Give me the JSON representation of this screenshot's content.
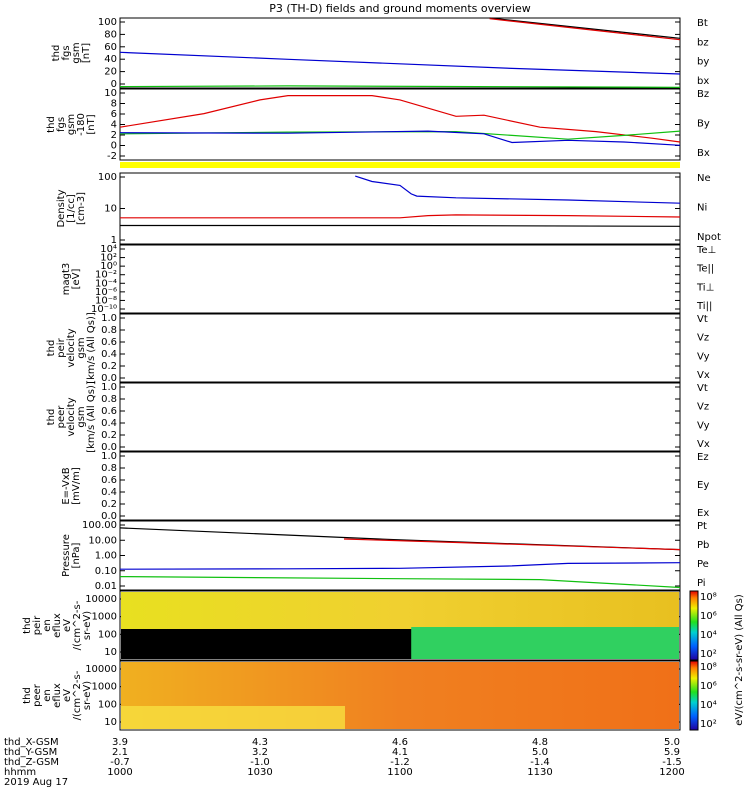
{
  "title": "P3 (TH-D) fields and ground moments overview",
  "colors": {
    "black": "#000000",
    "red": "#e00000",
    "green": "#10c010",
    "blue": "#0000d0",
    "yellow": "#ffff00"
  },
  "chart_data": [
    {
      "type": "line",
      "panel": "fgs-gsm",
      "ylabel": [
        "thd",
        "fgs",
        "gsm",
        "[nT]"
      ],
      "ylim": [
        0,
        100
      ],
      "yticks": [
        "100",
        "80",
        "60",
        "40",
        "20",
        "0"
      ],
      "legend": [
        {
          "name": "Bt",
          "color": "black"
        },
        {
          "name": "bz",
          "color": "red"
        },
        {
          "name": "by",
          "color": "green"
        },
        {
          "name": "bx",
          "color": "blue"
        }
      ],
      "series": [
        {
          "name": "Bt",
          "x": [
            0.66,
            1.0
          ],
          "y": [
            100,
            71
          ]
        },
        {
          "name": "bz",
          "x": [
            0.66,
            1.0
          ],
          "y": [
            99,
            69
          ]
        },
        {
          "name": "by",
          "x": [
            0,
            0.3,
            1.0
          ],
          "y": [
            2,
            3,
            1
          ]
        },
        {
          "name": "bx",
          "x": [
            0,
            0.3,
            0.7,
            1.0
          ],
          "y": [
            51,
            41,
            28,
            20
          ]
        }
      ]
    },
    {
      "type": "line",
      "panel": "fgs-gsm-180",
      "ylabel": [
        "thd",
        "fgs",
        "gsm",
        "-180",
        "[nT]"
      ],
      "ylim": [
        -3,
        10
      ],
      "yticks": [
        "10",
        "8",
        "6",
        "4",
        "2",
        "0",
        "-2"
      ],
      "legend": [
        {
          "name": "Bz",
          "color": "red"
        },
        {
          "name": "By",
          "color": "green"
        },
        {
          "name": "Bx",
          "color": "blue"
        }
      ],
      "series": [
        {
          "name": "Bz",
          "x": [
            0,
            0.15,
            0.25,
            0.3,
            0.45,
            0.5,
            0.6,
            0.65,
            0.75,
            0.85,
            0.95,
            1.0
          ],
          "y": [
            3,
            5.5,
            8,
            8.8,
            8.8,
            8,
            5,
            5.2,
            3,
            2.2,
            1,
            0.3
          ]
        },
        {
          "name": "By",
          "x": [
            0,
            0.3,
            0.6,
            0.7,
            0.8,
            0.9,
            1.0
          ],
          "y": [
            1.8,
            2.1,
            2.2,
            1.5,
            0.8,
            1.5,
            2.3
          ]
        },
        {
          "name": "Bx",
          "x": [
            0,
            0.3,
            0.55,
            0.65,
            0.7,
            0.8,
            0.9,
            1.0
          ],
          "y": [
            2,
            1.9,
            2.3,
            1.8,
            0.2,
            0.6,
            0.3,
            -0.3
          ]
        }
      ]
    },
    {
      "type": "line",
      "panel": "density",
      "yscale": "log",
      "ylabel": [
        "Density",
        "[1/cc]",
        "[cm-3]"
      ],
      "ylim": [
        0.03,
        300
      ],
      "yticks": [
        "100",
        "10",
        "1"
      ],
      "legend": [
        {
          "name": "Ne",
          "color": "red"
        },
        {
          "name": "Ni",
          "color": "black"
        },
        {
          "name": "Npot",
          "color": "blue"
        }
      ],
      "series": [
        {
          "name": "Ne",
          "x": [
            0,
            0.45,
            0.5,
            0.55,
            0.6,
            0.8,
            1.0
          ],
          "y": [
            0.9,
            0.9,
            0.9,
            1.2,
            1.3,
            1.2,
            1.0
          ]
        },
        {
          "name": "Ni",
          "x": [
            0,
            0.5,
            1.0
          ],
          "y": [
            0.33,
            0.33,
            0.3
          ]
        },
        {
          "name": "Npot",
          "x": [
            0.42,
            0.45,
            0.5,
            0.52,
            0.53,
            0.6,
            0.8,
            1.0
          ],
          "y": [
            200,
            100,
            60,
            20,
            15,
            12,
            9,
            6
          ]
        }
      ]
    },
    {
      "type": "line",
      "panel": "magt3",
      "yscale": "log",
      "ylabel": [
        "magt3",
        "[eV]"
      ],
      "ylim": [
        1e-10,
        10000
      ],
      "yticks": [
        "10⁴",
        "10²",
        "10⁰",
        "10⁻²",
        "10⁻⁴",
        "10⁻⁶",
        "10⁻⁸",
        "10⁻¹⁰"
      ],
      "legend": [
        {
          "name": "Te⊥",
          "color": "red"
        },
        {
          "name": "Te||",
          "color": "black"
        },
        {
          "name": "Ti⊥",
          "color": "blue"
        },
        {
          "name": "Ti||",
          "color": "green"
        }
      ],
      "series": []
    },
    {
      "type": "line",
      "panel": "peir-velocity",
      "ylabel": [
        "thd",
        "peir",
        "velocity",
        "gsm",
        "[km/s (All Qs)]"
      ],
      "ylim": [
        0,
        1
      ],
      "yticks": [
        "1.0",
        "0.8",
        "0.6",
        "0.4",
        "0.2",
        "0.0"
      ],
      "legend": [
        {
          "name": "Vt",
          "color": "black"
        },
        {
          "name": "Vz",
          "color": "red"
        },
        {
          "name": "Vy",
          "color": "green"
        },
        {
          "name": "Vx",
          "color": "blue"
        }
      ],
      "series": []
    },
    {
      "type": "line",
      "panel": "peer-velocity",
      "ylabel": [
        "thd",
        "peer",
        "velocity",
        "gsm",
        "[km/s (All Qs)]"
      ],
      "ylim": [
        0,
        1
      ],
      "yticks": [
        "1.0",
        "0.8",
        "0.6",
        "0.4",
        "0.2",
        "0.0"
      ],
      "legend": [
        {
          "name": "Vt",
          "color": "black"
        },
        {
          "name": "Vz",
          "color": "red"
        },
        {
          "name": "Vy",
          "color": "green"
        },
        {
          "name": "Vx",
          "color": "blue"
        }
      ],
      "series": []
    },
    {
      "type": "line",
      "panel": "efield",
      "ylabel": [
        "E=-VxB",
        "[mV/m]"
      ],
      "ylim": [
        0,
        1
      ],
      "yticks": [
        "1.0",
        "0.8",
        "0.6",
        "0.4",
        "0.2",
        "0.0"
      ],
      "legend": [
        {
          "name": "Ez",
          "color": "red"
        },
        {
          "name": "Ey",
          "color": "green"
        },
        {
          "name": "Ex",
          "color": "blue"
        }
      ],
      "series": []
    },
    {
      "type": "line",
      "panel": "pressure",
      "yscale": "log",
      "ylabel": [
        "Pressure",
        "[nPa]"
      ],
      "ylim": [
        0.01,
        100
      ],
      "yticks": [
        "100.00",
        "10.00",
        "1.00",
        "0.10",
        "0.01"
      ],
      "legend": [
        {
          "name": "Pt",
          "color": "black"
        },
        {
          "name": "Pb",
          "color": "red"
        },
        {
          "name": "Pe",
          "color": "blue"
        },
        {
          "name": "Pi",
          "color": "green"
        }
      ],
      "series": [
        {
          "name": "Pt",
          "x": [
            0,
            0.5,
            1.0
          ],
          "y": [
            40,
            8,
            2.2
          ]
        },
        {
          "name": "Pb",
          "x": [
            0.4,
            0.7,
            1.0
          ],
          "y": [
            9,
            4.5,
            2.2
          ]
        },
        {
          "name": "Pe",
          "x": [
            0,
            0.3,
            0.5,
            0.7,
            0.8,
            1.0
          ],
          "y": [
            0.16,
            0.17,
            0.18,
            0.25,
            0.35,
            0.38
          ]
        },
        {
          "name": "Pi",
          "x": [
            0,
            0.5,
            0.75,
            1.0
          ],
          "y": [
            0.06,
            0.045,
            0.04,
            0.014
          ]
        }
      ]
    },
    {
      "type": "heatmap",
      "panel": "peir-eflux",
      "ylabel": [
        "thd",
        "peir",
        "en",
        "eflux",
        "eV",
        "/(cm^2-s-",
        "sr-eV)"
      ],
      "yticks": [
        "10000",
        "1000",
        "100",
        "10"
      ],
      "colorbar_label": "eV/(cm^2-s-sr-eV) (All Qs)"
    },
    {
      "type": "heatmap",
      "panel": "peer-eflux",
      "ylabel": [
        "thd",
        "peer",
        "en",
        "eflux",
        "eV",
        "/(cm^2-s-",
        "sr-eV)"
      ],
      "yticks": [
        "10000",
        "1000",
        "100",
        "10"
      ],
      "colorbar_label": "eV/(cm^2-s-sr-eV) (All Qs)"
    }
  ],
  "colorbar_ticks": [
    "10⁸",
    "10⁶",
    "10⁴",
    "10²"
  ],
  "x_axis": {
    "row_labels": [
      "thd_X-GSM",
      "thd_Y-GSM",
      "thd_Z-GSM",
      "hhmm",
      "2019 Aug 17"
    ],
    "columns": [
      {
        "pos": 0.0,
        "vals": [
          "3.9",
          "2.1",
          "-0.7",
          "1000"
        ]
      },
      {
        "pos": 0.25,
        "vals": [
          "4.3",
          "3.2",
          "-1.0",
          "1030"
        ]
      },
      {
        "pos": 0.5,
        "vals": [
          "4.6",
          "4.1",
          "-1.2",
          "1100"
        ]
      },
      {
        "pos": 0.75,
        "vals": [
          "4.8",
          "5.0",
          "-1.4",
          "1130"
        ]
      },
      {
        "pos": 1.0,
        "vals": [
          "5.0",
          "5.9",
          "-1.5",
          "1200"
        ]
      }
    ]
  }
}
